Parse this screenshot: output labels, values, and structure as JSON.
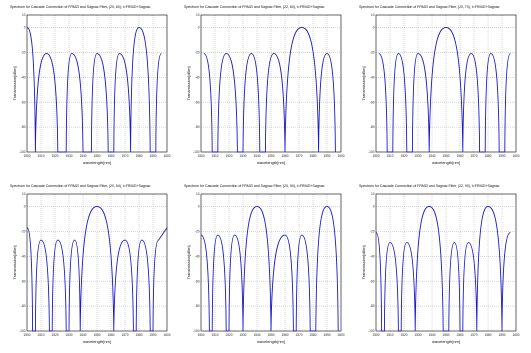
{
  "chart_data": [
    {
      "type": "line",
      "title": "Spectrum for Cascade Connection of FRMZI and Sagnac Filter, (20, 60), t=FRMZI+Sagnac",
      "xlabel": "wavelength[nm]",
      "ylabel": "Transmission[dBm]",
      "xlim": [
        1500,
        1600
      ],
      "ylim": [
        -100,
        10
      ],
      "x_ticks": [
        "1500",
        "1510",
        "1520",
        "1530",
        "1540",
        "1550",
        "1560",
        "1570",
        "1580",
        "1590",
        "1600"
      ],
      "y_ticks": [
        "10",
        "0",
        "-20",
        "-40",
        "-60",
        "-80",
        "-100"
      ],
      "grid": true,
      "peaks": [
        {
          "x": 1500,
          "y": 0
        },
        {
          "x": 1514,
          "y": -21
        },
        {
          "x": 1532,
          "y": -21
        },
        {
          "x": 1550,
          "y": -21
        },
        {
          "x": 1566,
          "y": -21
        },
        {
          "x": 1580,
          "y": 0
        },
        {
          "x": 1596,
          "y": -21
        }
      ],
      "nulls": [
        1506,
        1522,
        1528,
        1540,
        1546,
        1558,
        1562,
        1574,
        1588,
        1592
      ]
    },
    {
      "type": "line",
      "title": "Spectrum for Cascade Connection of FRMZI and Sagnac Filter, (22, 60), t=FRMZI+Sagnac",
      "xlabel": "wavelength[nm]",
      "ylabel": "Transmission[dBm]",
      "xlim": [
        1500,
        1600
      ],
      "ylim": [
        -100,
        10
      ],
      "x_ticks": [
        "1500",
        "1510",
        "1520",
        "1530",
        "1540",
        "1550",
        "1560",
        "1570",
        "1580",
        "1590",
        "1600"
      ],
      "y_ticks": [
        "10",
        "0",
        "-20",
        "-40",
        "-60",
        "-80",
        "-100"
      ],
      "grid": true,
      "peaks": [
        {
          "x": 1502,
          "y": -21
        },
        {
          "x": 1518,
          "y": -21
        },
        {
          "x": 1536,
          "y": -21
        },
        {
          "x": 1552,
          "y": -21
        },
        {
          "x": 1572,
          "y": 0
        },
        {
          "x": 1590,
          "y": -21
        }
      ],
      "nulls": [
        1508,
        1512,
        1526,
        1530,
        1542,
        1546,
        1560,
        1584,
        1596
      ]
    },
    {
      "type": "line",
      "title": "Spectrum for Cascade Connection of FRMZI and Sagnac Filter, (20, 70), t=FRMZI+Sagnac",
      "xlabel": "wavelength[nm]",
      "ylabel": "Transmission[dBm]",
      "xlim": [
        1500,
        1600
      ],
      "ylim": [
        -100,
        10
      ],
      "x_ticks": [
        "1500",
        "1510",
        "1520",
        "1530",
        "1540",
        "1550",
        "1560",
        "1570",
        "1580",
        "1590",
        "1600"
      ],
      "y_ticks": [
        "10",
        "0",
        "-20",
        "-40",
        "-60",
        "-80",
        "-100"
      ],
      "grid": true,
      "peaks": [
        {
          "x": 1502,
          "y": -21
        },
        {
          "x": 1516,
          "y": -21
        },
        {
          "x": 1530,
          "y": -21
        },
        {
          "x": 1550,
          "y": 0
        },
        {
          "x": 1568,
          "y": -21
        },
        {
          "x": 1582,
          "y": -21
        },
        {
          "x": 1596,
          "y": -21
        }
      ],
      "nulls": [
        1508,
        1512,
        1522,
        1526,
        1538,
        1562,
        1574,
        1578,
        1588,
        1592
      ]
    },
    {
      "type": "line",
      "title": "Spectrum for Cascade Connection of FRMZI and Sagnac Filter, (20, 54), t=FRMZI+Sagnac",
      "xlabel": "wavelength[nm]",
      "ylabel": "Transmission[dBm]",
      "xlim": [
        1500,
        1600
      ],
      "ylim": [
        -100,
        10
      ],
      "x_ticks": [
        "1500",
        "1510",
        "1520",
        "1530",
        "1540",
        "1550",
        "1560",
        "1570",
        "1580",
        "1590",
        "1600"
      ],
      "y_ticks": [
        "10",
        "0",
        "-20",
        "-40",
        "-60",
        "-80",
        "-100"
      ],
      "grid": true,
      "peaks": [
        {
          "x": 1500,
          "y": -17
        },
        {
          "x": 1510,
          "y": -27
        },
        {
          "x": 1522,
          "y": -27
        },
        {
          "x": 1534,
          "y": -27
        },
        {
          "x": 1550,
          "y": 0
        },
        {
          "x": 1570,
          "y": -27
        },
        {
          "x": 1582,
          "y": -27
        },
        {
          "x": 1594,
          "y": -27
        },
        {
          "x": 1600,
          "y": -17
        }
      ],
      "nulls": [
        1504,
        1506,
        1516,
        1518,
        1528,
        1530,
        1538,
        1562,
        1576,
        1578,
        1588,
        1590
      ]
    },
    {
      "type": "line",
      "title": "Spectrum for Cascade Connection of FRMZI and Sagnac Filter, (20, 90), t=FRMZI+Sagnac",
      "xlabel": "wavelength[nm]",
      "ylabel": "Transmission[dBm]",
      "xlim": [
        1500,
        1600
      ],
      "ylim": [
        -100,
        10
      ],
      "x_ticks": [
        "1500",
        "1510",
        "1520",
        "1530",
        "1540",
        "1550",
        "1560",
        "1570",
        "1580",
        "1590",
        "1600"
      ],
      "y_ticks": [
        "10",
        "0",
        "-20",
        "-40",
        "-60",
        "-80",
        "-100"
      ],
      "grid": true,
      "peaks": [
        {
          "x": 1500,
          "y": -23
        },
        {
          "x": 1512,
          "y": -23
        },
        {
          "x": 1524,
          "y": -23
        },
        {
          "x": 1540,
          "y": 0
        },
        {
          "x": 1560,
          "y": -23
        },
        {
          "x": 1572,
          "y": -23
        },
        {
          "x": 1590,
          "y": 0
        }
      ],
      "nulls": [
        1506,
        1508,
        1518,
        1520,
        1530,
        1550,
        1566,
        1568,
        1578,
        1582,
        1598
      ]
    },
    {
      "type": "line",
      "title": "Spectrum for Cascade Connection of FRMZI and Sagnac Filter, (22, 90), t=FRMZI+Sagnac",
      "xlabel": "wavelength[nm]",
      "ylabel": "Transmission[dBm]",
      "xlim": [
        1500,
        1600
      ],
      "ylim": [
        -100,
        10
      ],
      "x_ticks": [
        "1500",
        "1510",
        "1520",
        "1530",
        "1540",
        "1550",
        "1560",
        "1570",
        "1580",
        "1590",
        "1600"
      ],
      "y_ticks": [
        "10",
        "0",
        "-20",
        "-40",
        "-60",
        "-80",
        "-100"
      ],
      "grid": true,
      "peaks": [
        {
          "x": 1500,
          "y": -21
        },
        {
          "x": 1510,
          "y": -29
        },
        {
          "x": 1522,
          "y": -29
        },
        {
          "x": 1538,
          "y": 0
        },
        {
          "x": 1556,
          "y": -29
        },
        {
          "x": 1566,
          "y": -29
        },
        {
          "x": 1580,
          "y": 0
        },
        {
          "x": 1596,
          "y": -21
        }
      ],
      "nulls": [
        1504,
        1506,
        1516,
        1518,
        1528,
        1548,
        1552,
        1560,
        1562,
        1572,
        1590
      ]
    }
  ]
}
